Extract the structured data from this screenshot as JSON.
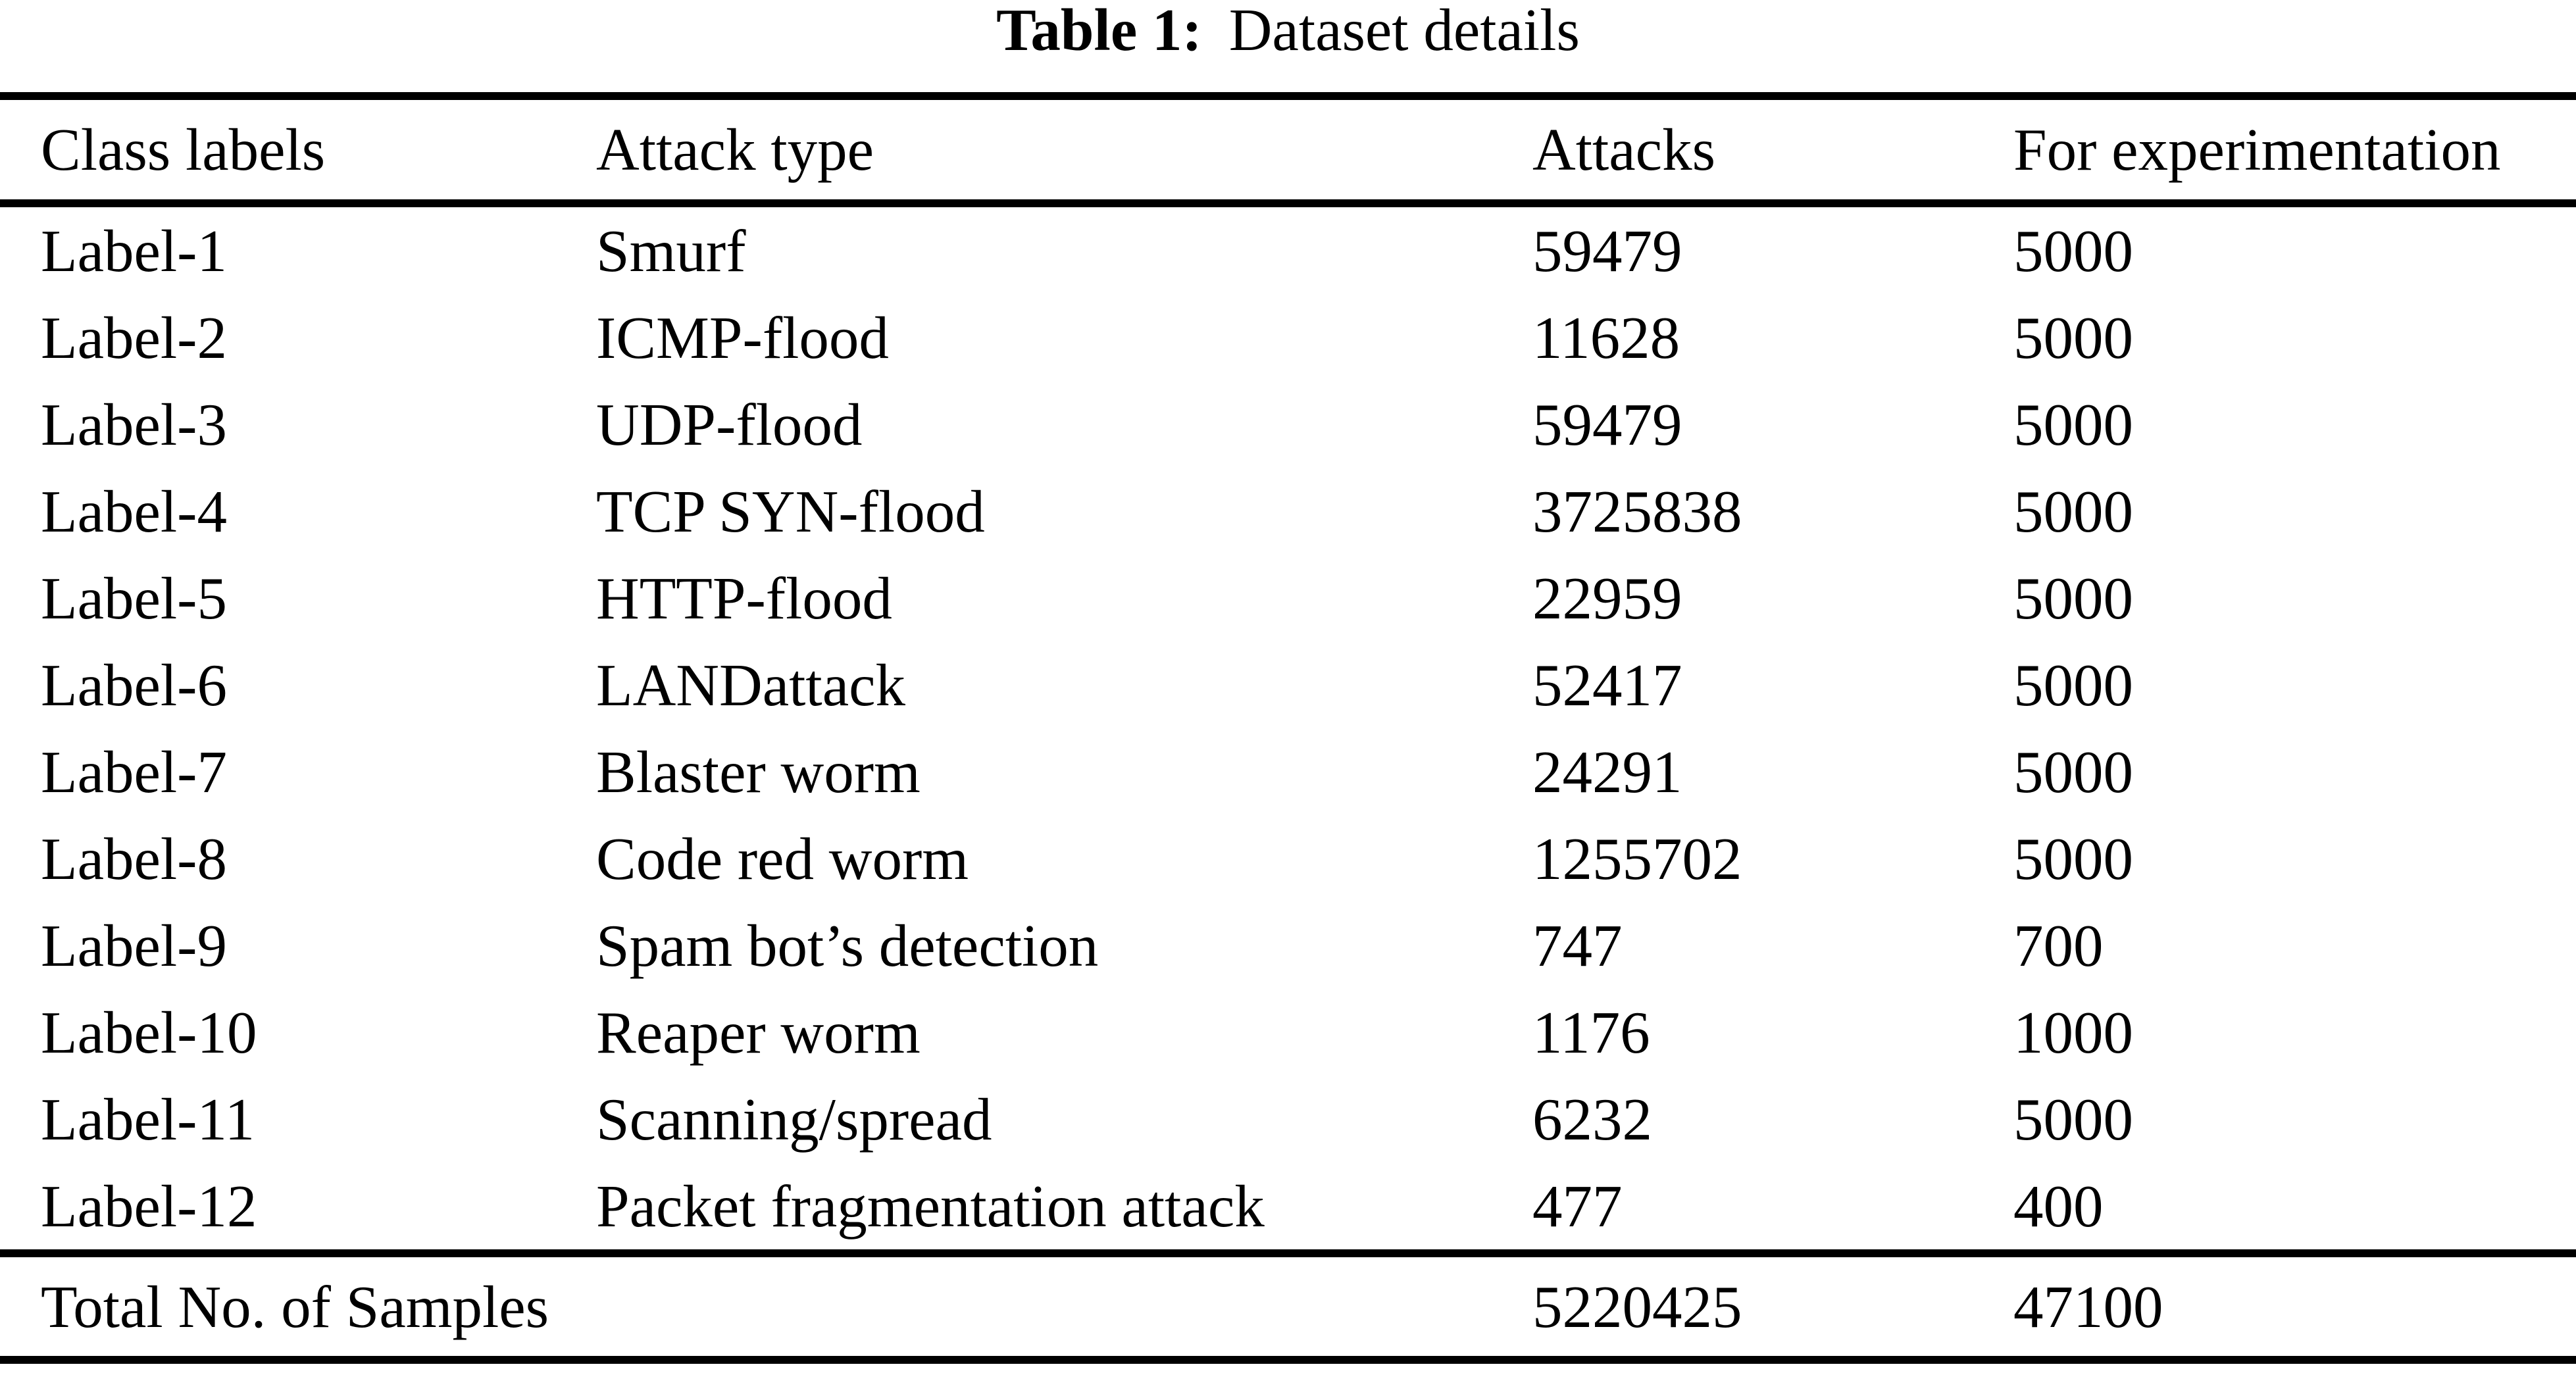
{
  "caption": {
    "label": "Table 1:",
    "text": "Dataset details"
  },
  "table": {
    "columns": [
      "Class labels",
      "Attack type",
      "Attacks",
      "For experimentation"
    ],
    "rows": [
      {
        "class_label": "Label-1",
        "attack_type": "Smurf",
        "attacks": "59479",
        "for_experimentation": "5000"
      },
      {
        "class_label": "Label-2",
        "attack_type": "ICMP-flood",
        "attacks": "11628",
        "for_experimentation": "5000"
      },
      {
        "class_label": "Label-3",
        "attack_type": "UDP-flood",
        "attacks": "59479",
        "for_experimentation": "5000"
      },
      {
        "class_label": "Label-4",
        "attack_type": "TCP SYN-flood",
        "attacks": "3725838",
        "for_experimentation": "5000"
      },
      {
        "class_label": "Label-5",
        "attack_type": "HTTP-flood",
        "attacks": "22959",
        "for_experimentation": "5000"
      },
      {
        "class_label": "Label-6",
        "attack_type": "LANDattack",
        "attacks": "52417",
        "for_experimentation": "5000"
      },
      {
        "class_label": "Label-7",
        "attack_type": "Blaster worm",
        "attacks": "24291",
        "for_experimentation": "5000"
      },
      {
        "class_label": "Label-8",
        "attack_type": "Code red worm",
        "attacks": "1255702",
        "for_experimentation": "5000"
      },
      {
        "class_label": "Label-9",
        "attack_type": "Spam bot’s detection",
        "attacks": "747",
        "for_experimentation": "700"
      },
      {
        "class_label": "Label-10",
        "attack_type": "Reaper worm",
        "attacks": "1176",
        "for_experimentation": "1000"
      },
      {
        "class_label": "Label-11",
        "attack_type": "Scanning/spread",
        "attacks": "6232",
        "for_experimentation": "5000"
      },
      {
        "class_label": "Label-12",
        "attack_type": "Packet fragmentation attack",
        "attacks": "477",
        "for_experimentation": "400"
      }
    ],
    "total": {
      "label": "Total No. of Samples",
      "attacks": "5220425",
      "for_experimentation": "47100"
    }
  }
}
